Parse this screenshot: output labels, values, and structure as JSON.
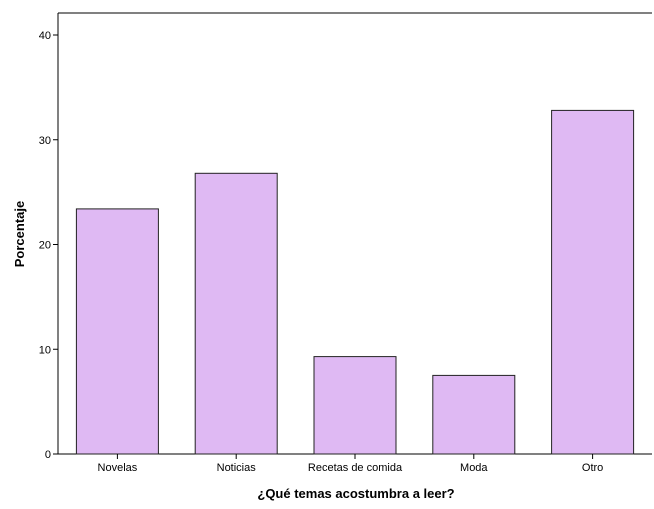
{
  "chart_data": {
    "type": "bar",
    "categories": [
      "Novelas",
      "Noticias",
      "Recetas de comida",
      "Moda",
      "Otro"
    ],
    "values": [
      23.4,
      26.8,
      9.3,
      7.5,
      32.8
    ],
    "xlabel": "¿Qué temas acostumbra a leer?",
    "ylabel": "Porcentaje",
    "ylim": [
      0,
      40
    ],
    "yticks": [
      0,
      10,
      20,
      30,
      40
    ],
    "grid": false,
    "colors": {
      "bar_fill": "#dfb9f3",
      "bar_stroke": "#222222",
      "axis": "#000000",
      "background": "#ffffff"
    }
  }
}
